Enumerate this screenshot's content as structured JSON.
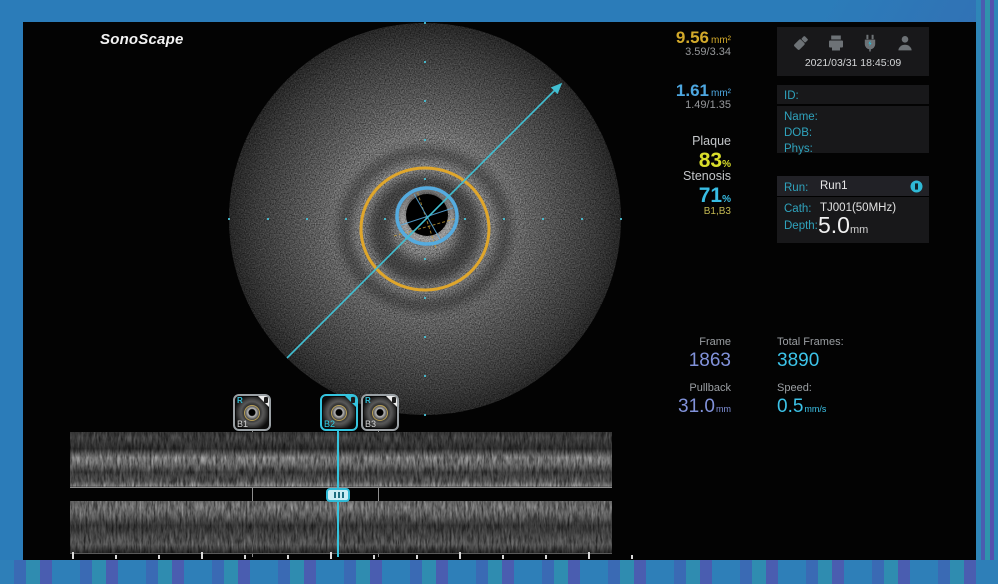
{
  "brand": "SonoScape",
  "measurements": {
    "vessel": {
      "area": "9.56",
      "unit": "mm²",
      "diameters": "3.59/3.34"
    },
    "lumen": {
      "area": "1.61",
      "unit": "mm²",
      "diameters": "1.49/1.35"
    },
    "plaque": {
      "label": "Plaque",
      "value": "83",
      "unit": "%"
    },
    "stenosis": {
      "label": "Stenosis",
      "value": "71",
      "unit": "%",
      "reference": "B1,B3"
    }
  },
  "toolbar": {
    "datetime": "2021/03/31 18:45:09",
    "icons": [
      "usb",
      "printer",
      "power",
      "user"
    ]
  },
  "patient": {
    "id_label": "ID:",
    "name_label": "Name:",
    "dob_label": "DOB:",
    "phys_label": "Phys:"
  },
  "run": {
    "run_label": "Run:",
    "run_value": "Run1",
    "cath_label": "Cath:",
    "cath_value": "TJ001(50MHz)",
    "depth_label": "Depth:",
    "depth_value": "5.0",
    "depth_unit": "mm"
  },
  "playback": {
    "frame_label": "Frame",
    "frame_value": "1863",
    "total_frames_label": "Total Frames:",
    "total_frames_value": "3890",
    "pullback_label": "Pullback",
    "pullback_value": "31.0",
    "pullback_unit": "mm",
    "speed_label": "Speed:",
    "speed_value": "0.5",
    "speed_unit": "mm/s"
  },
  "bookmarks": [
    {
      "id": "B1",
      "flag": "R",
      "selected": false
    },
    {
      "id": "B2",
      "flag": "",
      "selected": true
    },
    {
      "id": "B3",
      "flag": "R",
      "selected": false
    }
  ],
  "colors": {
    "vessel_contour": "#dfa62b",
    "lumen_contour": "#55abdf",
    "measure_line": "#41bfd2",
    "plaque_value": "#d9de2b",
    "stenosis_value": "#38bde4",
    "frame_value": "#8192da",
    "total_value": "#3cc3e8",
    "frame_border": "#2b7cb9"
  }
}
